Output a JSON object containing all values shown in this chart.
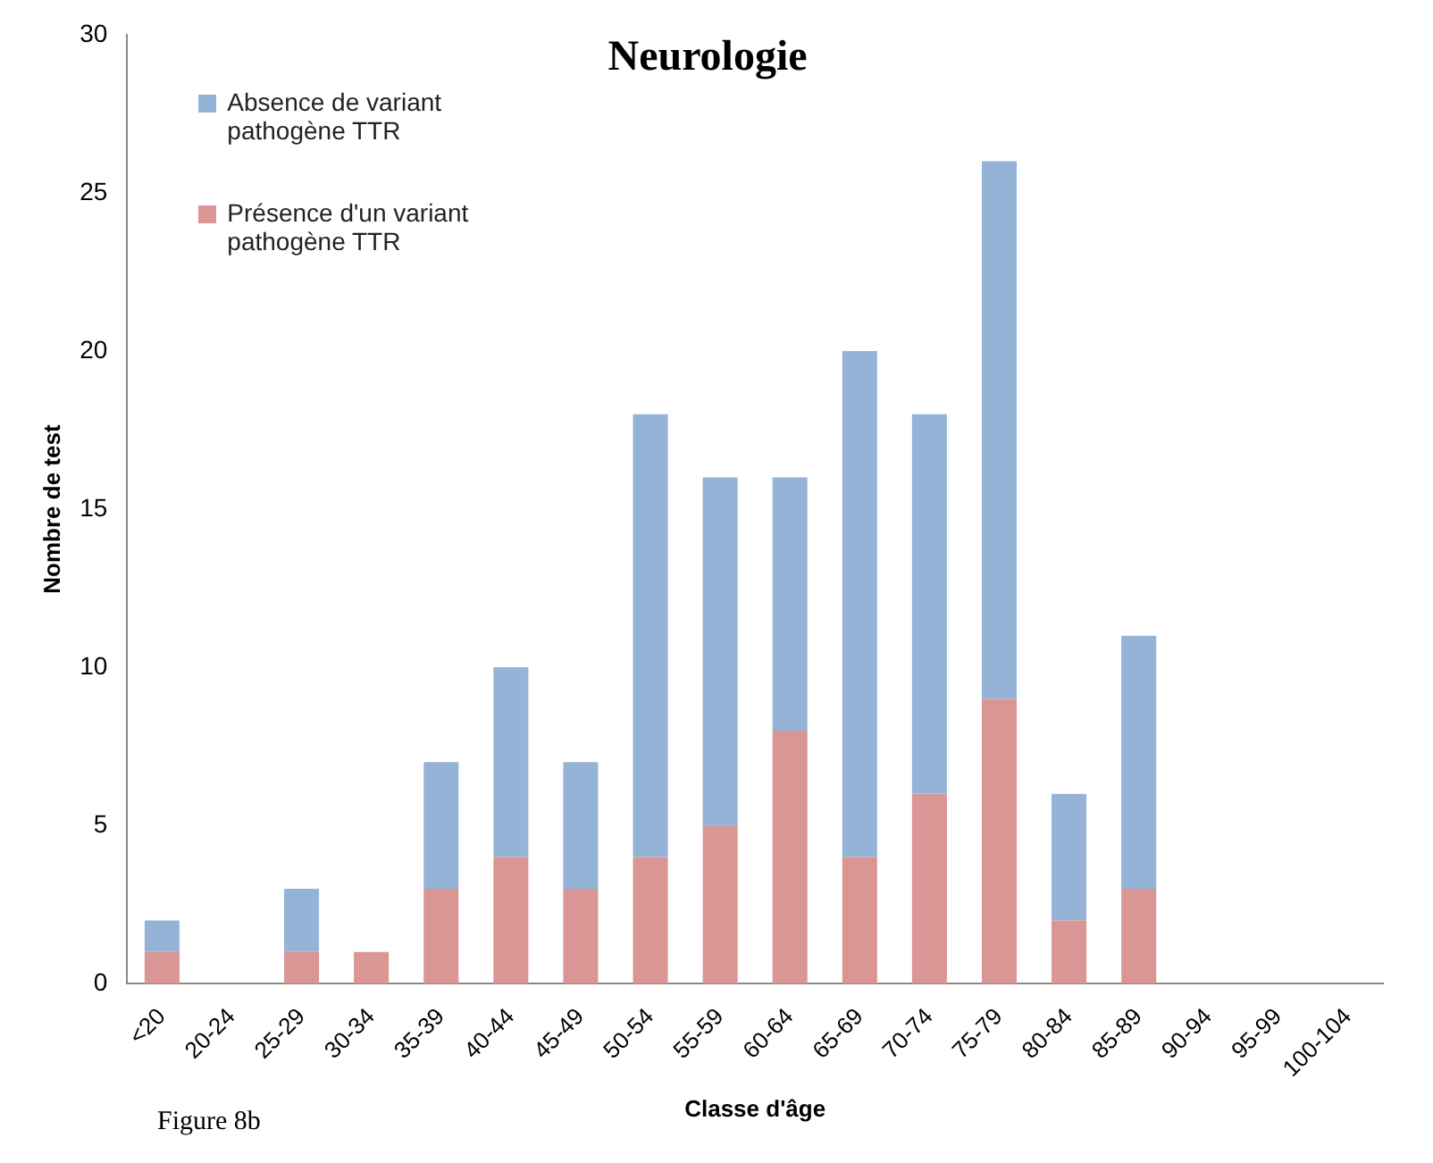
{
  "chart_data": {
    "type": "bar",
    "title": "Neurologie",
    "xlabel": "Classe d'âge",
    "ylabel": "Nombre de test",
    "stacked": true,
    "legend": "top left",
    "grid": false,
    "categories": [
      "<20",
      "20-24",
      "25-29",
      "30-34",
      "35-39",
      "40-44",
      "45-49",
      "50-54",
      "55-59",
      "60-64",
      "65-69",
      "70-74",
      "75-79",
      "80-84",
      "85-89",
      "90-94",
      "95-99",
      "100-104"
    ],
    "series": [
      {
        "name": "Présence d'un variant pathogène TTR",
        "color": "#d99694",
        "values": [
          1,
          0,
          1,
          1,
          3,
          4,
          3,
          4,
          5,
          8,
          4,
          6,
          9,
          2,
          3,
          0,
          0,
          0
        ]
      },
      {
        "name": "Absence de variant pathogène TTR",
        "color": "#95b3d7",
        "values": [
          1,
          0,
          2,
          0,
          4,
          6,
          4,
          14,
          11,
          8,
          16,
          12,
          17,
          4,
          8,
          0,
          0,
          0
        ]
      }
    ],
    "ylim": [
      0,
      30
    ],
    "yticks": [
      0,
      5,
      10,
      15,
      20,
      25,
      30
    ],
    "annotations": [
      "Figure 8b"
    ]
  }
}
